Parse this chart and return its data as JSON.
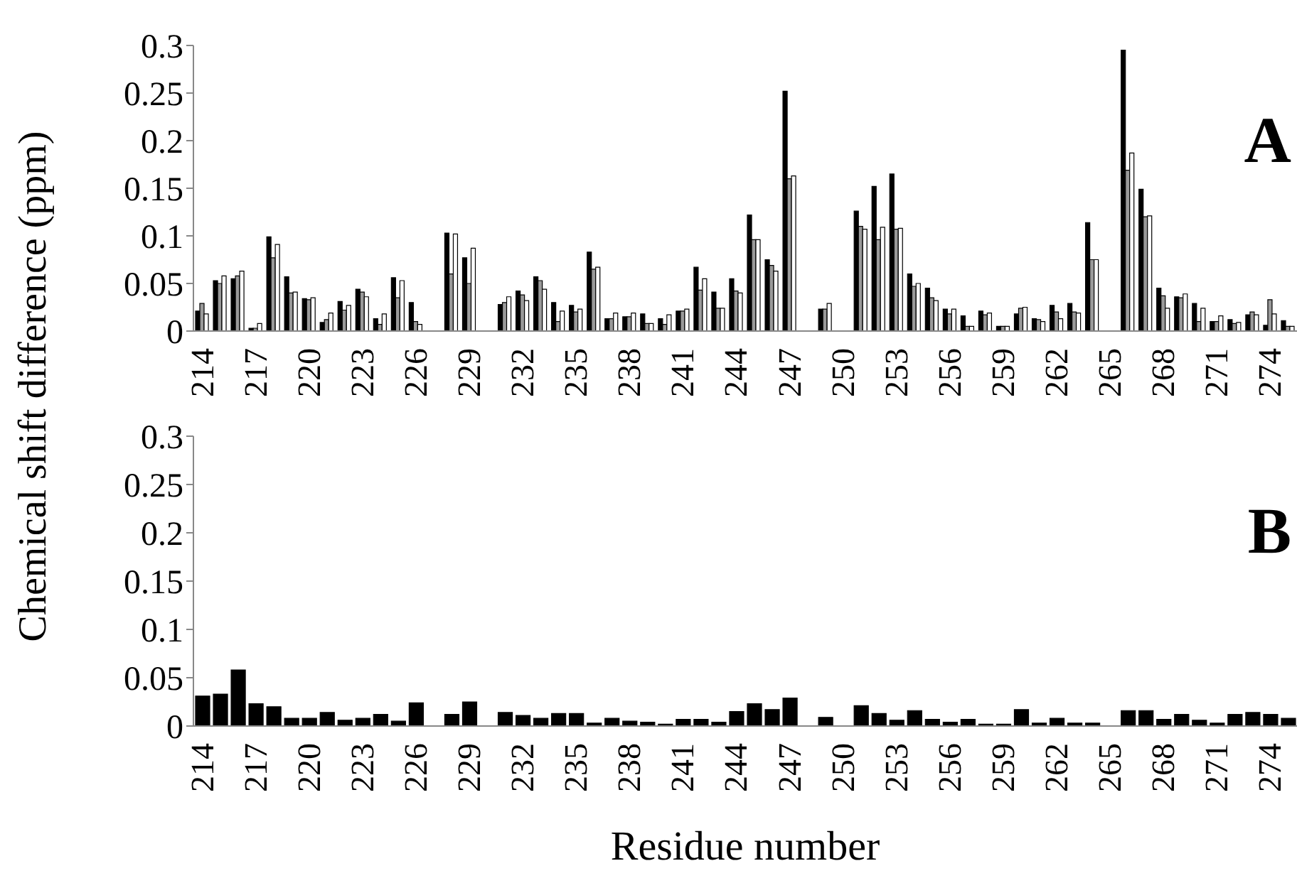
{
  "chart_data": [
    {
      "type": "bar",
      "ylabel": "Chemical shift difference (ppm)",
      "annotations": [
        "A"
      ],
      "categories": [
        "214",
        null,
        null,
        "217",
        null,
        null,
        "220",
        null,
        null,
        "223",
        null,
        null,
        "226",
        null,
        null,
        "229",
        null,
        null,
        "232",
        null,
        null,
        "235",
        null,
        null,
        "238",
        null,
        null,
        "241",
        null,
        null,
        "244",
        null,
        null,
        "247",
        null,
        null,
        "250",
        null,
        null,
        "253",
        null,
        null,
        "256",
        null,
        null,
        "259",
        null,
        null,
        "262",
        null,
        null,
        "265",
        null,
        null,
        "268",
        null,
        null,
        "271",
        null,
        null,
        "274",
        null
      ],
      "series": [
        {
          "color": "#000000",
          "values": [
            0.021,
            0.053,
            0.055,
            0.003,
            0.099,
            0.057,
            0.034,
            0.009,
            0.031,
            0.044,
            0.013,
            0.056,
            0.03,
            0,
            0.103,
            0.077,
            0,
            0.028,
            0.042,
            0.057,
            0.03,
            0.027,
            0.083,
            0.013,
            0.015,
            0.018,
            0.013,
            0.021,
            0.067,
            0.041,
            0.055,
            0.122,
            0.075,
            0.252,
            0,
            0.023,
            0,
            0.126,
            0.152,
            0.165,
            0.06,
            0.045,
            0.023,
            0.016,
            0.021,
            0.005,
            0.018,
            0.013,
            0.027,
            0.029,
            0.114,
            0,
            0.295,
            0.149,
            0.045,
            0.036,
            0.029,
            0.01,
            0.012,
            0.017,
            0.006,
            0.011
          ]
        },
        {
          "color": "#9a9a9a",
          "values": [
            0.029,
            0.05,
            0.058,
            0.003,
            0.077,
            0.04,
            0.033,
            0.012,
            0.022,
            0.041,
            0.007,
            0.035,
            0.01,
            0,
            0.06,
            0.05,
            0,
            0.03,
            0.038,
            0.053,
            0.01,
            0.02,
            0.065,
            0.013,
            0.015,
            0.008,
            0.007,
            0.021,
            0.043,
            0.024,
            0.042,
            0.096,
            0.069,
            0.16,
            0,
            0.023,
            0,
            0.11,
            0.096,
            0.107,
            0.047,
            0.035,
            0.018,
            0.005,
            0.017,
            0.005,
            0.024,
            0.012,
            0.02,
            0.02,
            0.075,
            0,
            0.169,
            0.12,
            0.037,
            0.035,
            0.01,
            0.01,
            0.008,
            0.02,
            0.033,
            0.005
          ]
        },
        {
          "color": "#ffffff",
          "values": [
            0.018,
            0.058,
            0.063,
            0.008,
            0.091,
            0.041,
            0.035,
            0.019,
            0.027,
            0.036,
            0.018,
            0.053,
            0.007,
            0,
            0.102,
            0.087,
            0,
            0.036,
            0.032,
            0.044,
            0.021,
            0.023,
            0.067,
            0.019,
            0.019,
            0.008,
            0.017,
            0.023,
            0.055,
            0.024,
            0.04,
            0.096,
            0.063,
            0.163,
            0,
            0.029,
            0,
            0.107,
            0.109,
            0.108,
            0.05,
            0.032,
            0.023,
            0.005,
            0.019,
            0.005,
            0.025,
            0.01,
            0.013,
            0.019,
            0.075,
            0,
            0.187,
            0.121,
            0.024,
            0.039,
            0.024,
            0.016,
            0.009,
            0.017,
            0.018,
            0.005
          ]
        }
      ],
      "ylim": [
        0,
        0.3
      ],
      "yticks": [
        0,
        0.05,
        0.1,
        0.15,
        0.2,
        0.25,
        0.3
      ]
    },
    {
      "type": "bar",
      "xlabel": "Residue number",
      "annotations": [
        "B"
      ],
      "categories": [
        "214",
        null,
        null,
        "217",
        null,
        null,
        "220",
        null,
        null,
        "223",
        null,
        null,
        "226",
        null,
        null,
        "229",
        null,
        null,
        "232",
        null,
        null,
        "235",
        null,
        null,
        "238",
        null,
        null,
        "241",
        null,
        null,
        "244",
        null,
        null,
        "247",
        null,
        null,
        "250",
        null,
        null,
        "253",
        null,
        null,
        "256",
        null,
        null,
        "259",
        null,
        null,
        "262",
        null,
        null,
        "265",
        null,
        null,
        "268",
        null,
        null,
        "271",
        null,
        null,
        "274",
        null
      ],
      "series": [
        {
          "color": "#000000",
          "values": [
            0.031,
            0.033,
            0.058,
            0.023,
            0.02,
            0.008,
            0.008,
            0.014,
            0.006,
            0.008,
            0.012,
            0.005,
            0.024,
            0,
            0.012,
            0.025,
            0,
            0.014,
            0.011,
            0.008,
            0.013,
            0.013,
            0.003,
            0.008,
            0.005,
            0.004,
            0.002,
            0.007,
            0.007,
            0.004,
            0.015,
            0.023,
            0.017,
            0.029,
            0,
            0.009,
            0,
            0.021,
            0.013,
            0.006,
            0.016,
            0.007,
            0.004,
            0.007,
            0.002,
            0.002,
            0.017,
            0.003,
            0.008,
            0.003,
            0.003,
            0,
            0.016,
            0.016,
            0.007,
            0.012,
            0.006,
            0.003,
            0.012,
            0.014,
            0.012,
            0.008
          ]
        }
      ],
      "ylim": [
        0,
        0.3
      ],
      "yticks": [
        0,
        0.05,
        0.1,
        0.15,
        0.2,
        0.25,
        0.3
      ]
    }
  ]
}
